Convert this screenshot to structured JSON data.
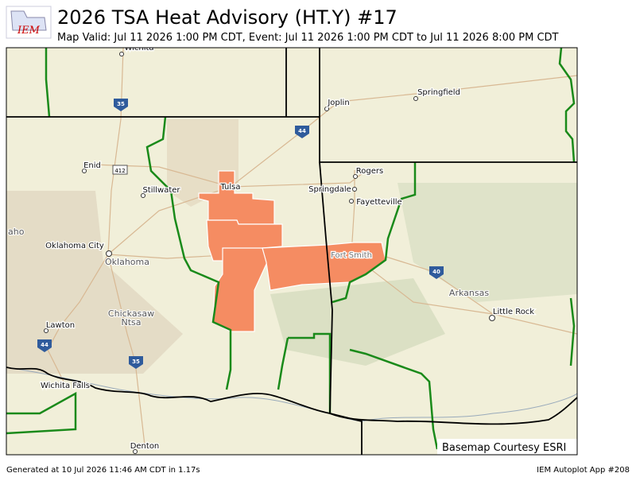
{
  "header": {
    "title": "2026 TSA  Heat Advisory (HT.Y) #17",
    "subtitle": "Map Valid: Jul 11 2026 1:00 PM CDT, Event: Jul 11 2026 1:00 PM CDT to Jul 11 2026 8:00 PM CDT",
    "logo": "IEM"
  },
  "map": {
    "labels": [
      "Wichita",
      "Joplin",
      "Springfield",
      "Enid",
      "Stillwater",
      "Tulsa",
      "Rogers",
      "Springdale",
      "Fayetteville",
      "Oklahoma City",
      "Oklahoma",
      "Fort Smith",
      "Arkansas",
      "Little Rock",
      "Lawton",
      "Chickasaw",
      "Ntsa",
      "Wichita Falls",
      "Denton",
      "aho"
    ],
    "shields": [
      "35",
      "44",
      "412",
      "40",
      "44",
      "35"
    ],
    "credit": "Basemap Courtesy ESRI"
  },
  "footer": {
    "left": "Generated at 10 Jul 2026 11:46 AM CDT in 1.17s",
    "right": "IEM Autoplot App #208"
  }
}
